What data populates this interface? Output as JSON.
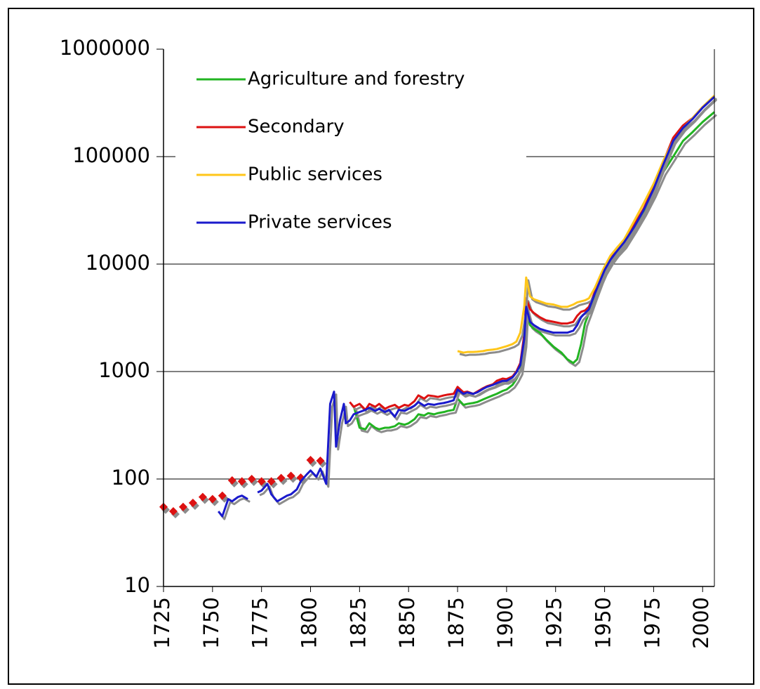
{
  "chart_data": {
    "type": "line",
    "log_y": true,
    "grid": true,
    "legend": "upper left",
    "xlim": [
      1725,
      2006
    ],
    "ylim": [
      10,
      1000000
    ],
    "xticks": [
      1725,
      1750,
      1775,
      1800,
      1825,
      1850,
      1875,
      1900,
      1925,
      1950,
      1975,
      2000
    ],
    "yticks": [
      10,
      100,
      1000,
      10000,
      100000,
      1000000
    ],
    "x": [
      1725,
      1728,
      1730,
      1733,
      1735,
      1738,
      1740,
      1743,
      1745,
      1748,
      1750,
      1753,
      1755,
      1758,
      1760,
      1763,
      1765,
      1768,
      1770,
      1773,
      1775,
      1778,
      1780,
      1783,
      1785,
      1788,
      1790,
      1793,
      1795,
      1798,
      1800,
      1803,
      1805,
      1808,
      1810,
      1812,
      1813,
      1815,
      1817,
      1818,
      1820,
      1822,
      1825,
      1828,
      1830,
      1833,
      1835,
      1838,
      1840,
      1843,
      1845,
      1848,
      1850,
      1853,
      1855,
      1858,
      1860,
      1863,
      1865,
      1868,
      1870,
      1873,
      1875,
      1878,
      1880,
      1883,
      1885,
      1888,
      1890,
      1893,
      1895,
      1898,
      1900,
      1903,
      1905,
      1907,
      1909,
      1910,
      1912,
      1914,
      1917,
      1920,
      1924,
      1928,
      1931,
      1934,
      1936,
      1938,
      1940,
      1942,
      1945,
      1948,
      1950,
      1953,
      1956,
      1960,
      1965,
      1970,
      1975,
      1980,
      1985,
      1990,
      1995,
      2000,
      2006
    ],
    "series": [
      {
        "name": "Agriculture and forestry",
        "color": "#22b422",
        "values": [
          null,
          null,
          null,
          null,
          null,
          null,
          null,
          null,
          null,
          null,
          null,
          null,
          null,
          null,
          null,
          null,
          null,
          null,
          null,
          null,
          null,
          null,
          null,
          null,
          null,
          null,
          null,
          null,
          null,
          null,
          null,
          null,
          null,
          null,
          null,
          null,
          null,
          null,
          null,
          null,
          null,
          480,
          300,
          290,
          330,
          300,
          290,
          300,
          300,
          310,
          330,
          320,
          330,
          360,
          400,
          390,
          410,
          400,
          410,
          420,
          430,
          440,
          560,
          490,
          500,
          510,
          520,
          550,
          570,
          600,
          620,
          660,
          680,
          750,
          850,
          1000,
          1800,
          3900,
          2700,
          2500,
          2300,
          2000,
          1700,
          1500,
          1300,
          1200,
          1300,
          1800,
          2800,
          3500,
          5000,
          7000,
          8500,
          10500,
          12500,
          15000,
          21000,
          30000,
          45000,
          72000,
          100000,
          140000,
          170000,
          210000,
          260000
        ]
      },
      {
        "name": "Secondary",
        "color": "#dd1111",
        "values": [
          55,
          null,
          50,
          null,
          55,
          null,
          60,
          null,
          68,
          null,
          65,
          null,
          70,
          null,
          97,
          null,
          95,
          null,
          100,
          null,
          95,
          null,
          95,
          null,
          102,
          null,
          107,
          null,
          103,
          null,
          150,
          null,
          148,
          null,
          null,
          null,
          null,
          null,
          null,
          null,
          520,
          470,
          500,
          440,
          500,
          470,
          500,
          450,
          470,
          490,
          460,
          490,
          480,
          530,
          600,
          560,
          600,
          590,
          580,
          600,
          610,
          620,
          720,
          640,
          650,
          620,
          650,
          700,
          730,
          760,
          820,
          860,
          850,
          900,
          1000,
          1200,
          2200,
          4800,
          3800,
          3500,
          3200,
          3000,
          2900,
          2800,
          2800,
          2900,
          3300,
          3600,
          3700,
          4000,
          5500,
          7500,
          9000,
          11500,
          13000,
          16000,
          23000,
          33000,
          52000,
          90000,
          150000,
          195000,
          230000,
          290000,
          360000
        ]
      },
      {
        "name": "Public services",
        "color": "#ffc61a",
        "values": [
          null,
          null,
          null,
          null,
          null,
          null,
          null,
          null,
          null,
          null,
          null,
          null,
          null,
          null,
          null,
          null,
          null,
          null,
          null,
          null,
          null,
          null,
          null,
          null,
          null,
          null,
          null,
          null,
          null,
          null,
          null,
          null,
          null,
          null,
          null,
          null,
          null,
          null,
          null,
          null,
          null,
          null,
          null,
          null,
          null,
          null,
          null,
          null,
          null,
          null,
          null,
          null,
          null,
          null,
          null,
          null,
          null,
          null,
          null,
          null,
          null,
          null,
          1550,
          1500,
          1520,
          1520,
          1530,
          1550,
          1580,
          1600,
          1620,
          1680,
          1720,
          1800,
          1900,
          2300,
          4000,
          7500,
          5000,
          4700,
          4500,
          4300,
          4200,
          4000,
          4000,
          4200,
          4400,
          4500,
          4600,
          4800,
          6000,
          8000,
          9500,
          12000,
          14000,
          17000,
          25000,
          37000,
          56000,
          92000,
          140000,
          185000,
          230000,
          290000,
          370000
        ]
      },
      {
        "name": "Private services",
        "color": "#1a1acc",
        "values": [
          null,
          null,
          null,
          null,
          null,
          null,
          null,
          null,
          null,
          null,
          null,
          50,
          45,
          65,
          62,
          68,
          70,
          65,
          null,
          75,
          78,
          90,
          72,
          62,
          65,
          70,
          72,
          80,
          95,
          110,
          120,
          105,
          125,
          90,
          500,
          650,
          200,
          350,
          500,
          330,
          350,
          400,
          420,
          440,
          460,
          430,
          450,
          420,
          440,
          380,
          440,
          430,
          450,
          480,
          520,
          480,
          500,
          490,
          500,
          510,
          520,
          540,
          680,
          620,
          640,
          620,
          640,
          690,
          720,
          750,
          780,
          820,
          820,
          880,
          980,
          1150,
          2000,
          4000,
          2900,
          2700,
          2500,
          2400,
          2300,
          2300,
          2300,
          2400,
          2700,
          3200,
          3500,
          3800,
          5300,
          7200,
          8800,
          11000,
          13000,
          16000,
          22000,
          32000,
          50000,
          85000,
          140000,
          185000,
          225000,
          285000,
          360000
        ]
      }
    ]
  }
}
